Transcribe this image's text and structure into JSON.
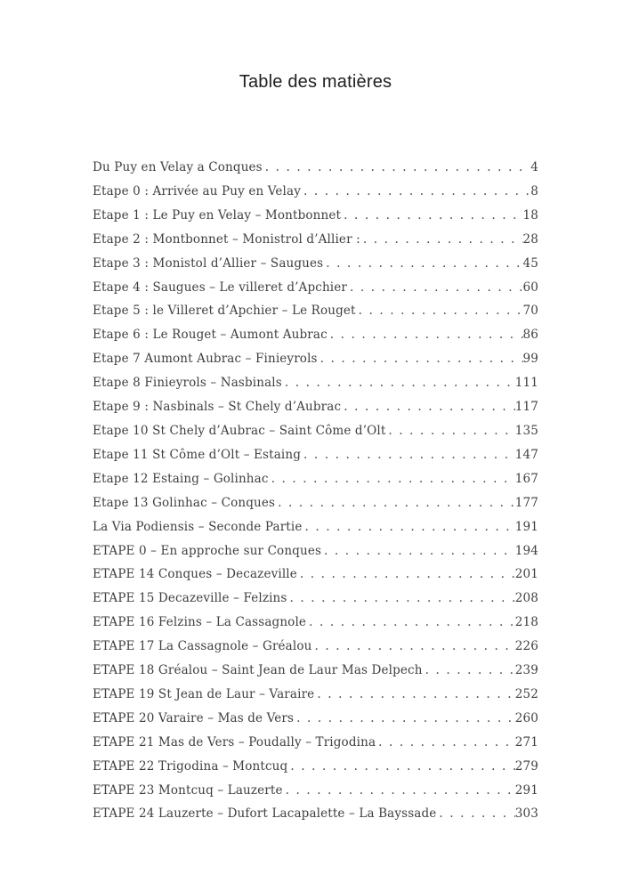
{
  "page": {
    "title": "Table des matières"
  },
  "toc": {
    "entries": [
      {
        "label": "Du Puy en Velay a Conques",
        "page": "4"
      },
      {
        "label": "Etape 0 : Arrivée au Puy en Velay",
        "page": "8"
      },
      {
        "label": "Etape 1 : Le Puy en Velay – Montbonnet",
        "page": "18"
      },
      {
        "label": "Etape 2 : Montbonnet – Monistrol d’Allier :",
        "page": "28"
      },
      {
        "label": "Etape 3 : Monistol d’Allier – Saugues",
        "page": "45"
      },
      {
        "label": "Etape 4 : Saugues – Le villeret d’Apchier",
        "page": "60"
      },
      {
        "label": "Etape 5 : le Villeret d’Apchier – Le Rouget",
        "page": "70"
      },
      {
        "label": "Etape 6 : Le Rouget – Aumont Aubrac",
        "page": "86"
      },
      {
        "label": "Etape 7 Aumont Aubrac – Finieyrols",
        "page": "99"
      },
      {
        "label": "Etape 8 Finieyrols – Nasbinals",
        "page": "111"
      },
      {
        "label": "Etape 9 : Nasbinals – St Chely d’Aubrac",
        "page": "117"
      },
      {
        "label": "Etape 10 St Chely d’Aubrac – Saint Côme d’Olt",
        "page": "135"
      },
      {
        "label": "Etape 11 St Côme d’Olt – Estaing",
        "page": "147"
      },
      {
        "label": "Etape 12 Estaing – Golinhac",
        "page": "167"
      },
      {
        "label": "Etape 13 Golinhac – Conques",
        "page": "177"
      },
      {
        "label": "La Via Podiensis – Seconde Partie",
        "page": "191"
      },
      {
        "label": "ETAPE 0 – En approche sur Conques",
        "page": "194"
      },
      {
        "label": "ETAPE 14 Conques – Decazeville",
        "page": "201"
      },
      {
        "label": "ETAPE 15 Decazeville – Felzins",
        "page": "208"
      },
      {
        "label": "ETAPE 16 Felzins – La Cassagnole",
        "page": "218"
      },
      {
        "label": "ETAPE 17 La Cassagnole – Gréalou",
        "page": "226"
      },
      {
        "label": "ETAPE 18 Gréalou – Saint Jean de Laur Mas Delpech",
        "page": "239"
      },
      {
        "label": "ETAPE 19 St Jean de Laur – Varaire",
        "page": "252"
      },
      {
        "label": "ETAPE 20 Varaire – Mas de Vers",
        "page": "260"
      },
      {
        "label": "ETAPE 21 Mas de Vers – Poudally – Trigodina",
        "page": "271"
      },
      {
        "label": "ETAPE 22 Trigodina – Montcuq",
        "page": "279"
      },
      {
        "label": "ETAPE 23 Montcuq – Lauzerte",
        "page": "291"
      },
      {
        "label": "ETAPE 24 Lauzerte – Dufort Lacapalette – La Bayssade",
        "page": "303"
      }
    ]
  }
}
